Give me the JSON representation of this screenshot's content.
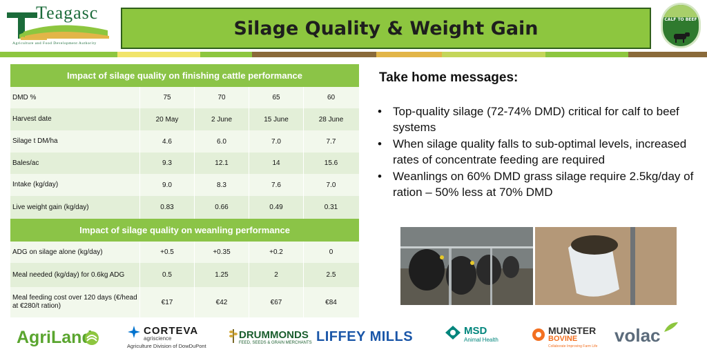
{
  "header": {
    "logo_text": "Teagasc",
    "logo_tagline": "Agriculture and Food Development Authority",
    "title": "Silage Quality & Weight Gain",
    "badge_lines": [
      "CALF TO BEEF"
    ]
  },
  "colors": {
    "title_bg": "#8dc63f",
    "table_header": "#8bc447",
    "row_light": "#f2f8ec",
    "row_dark": "#e3efd8"
  },
  "finishing_table": {
    "heading": "Impact of silage quality on finishing cattle performance",
    "rows": [
      {
        "label": "DMD %",
        "values": [
          "75",
          "70",
          "65",
          "60"
        ]
      },
      {
        "label": "Harvest date",
        "values": [
          "20 May",
          "2 June",
          "15 June",
          "28 June"
        ]
      },
      {
        "label": "Silage t DM/ha",
        "values": [
          "4.6",
          "6.0",
          "7.0",
          "7.7"
        ]
      },
      {
        "label": "Bales/ac",
        "values": [
          "9.3",
          "12.1",
          "14",
          "15.6"
        ]
      },
      {
        "label": "Intake (kg/day)",
        "values": [
          "9.0",
          "8.3",
          "7.6",
          "7.0"
        ]
      },
      {
        "label": "Live weight gain (kg/day)",
        "values": [
          "0.83",
          "0.66",
          "0.49",
          "0.31"
        ]
      }
    ]
  },
  "weanling_table": {
    "heading": "Impact of silage quality on weanling performance",
    "rows": [
      {
        "label": "ADG on silage alone (kg/day)",
        "values": [
          "+0.5",
          "+0.35",
          "+0.2",
          "0"
        ]
      },
      {
        "label": "Meal needed (kg/day) for 0.6kg ADG",
        "values": [
          "0.5",
          "1.25",
          "2",
          "2.5"
        ]
      },
      {
        "label": "Meal feeding cost over 120 days (€/head at €280/t ration)",
        "values": [
          "€17",
          "€42",
          "€67",
          "€84"
        ]
      }
    ]
  },
  "take_home": {
    "title": "Take home messages:",
    "bullet": "•",
    "items": [
      "Top-quality silage (72-74% DMD) critical for calf to beef systems",
      "When silage quality falls to sub-optimal levels, increased rates of concentrate feeding are required",
      "Weanlings on 60% DMD grass silage require 2.5kg/day of ration – 50% less at 70% DMD"
    ]
  },
  "sponsors": {
    "agriland": "AgriLand",
    "corteva": "CORTEVA",
    "corteva_sub": "agriscience",
    "corteva_div": "Agriculture Division of DowDuPont",
    "drummonds": "DRUMMONDS",
    "drummonds_sub": "FEED, SEEDS & GRAIN MERCHANTS",
    "liffey": "LIFFEY MILLS",
    "msd": "MSD",
    "msd_sub": "Animal Health",
    "munster": "MUNSTER",
    "munster_2": "BOVINE",
    "munster_sub": "Collaborate Improving Farm Life",
    "volac": "volac"
  }
}
